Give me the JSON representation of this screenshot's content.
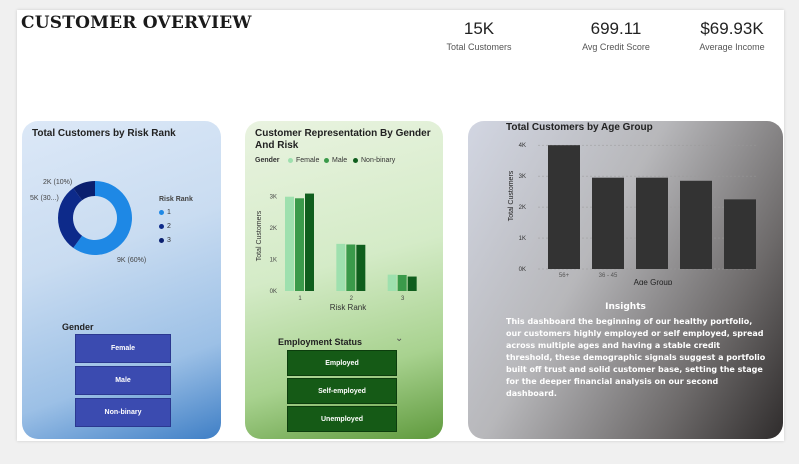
{
  "header": {
    "title": "CUSTOMER OVERVIEW",
    "kpis": [
      {
        "value": "15K",
        "label": "Total Customers"
      },
      {
        "value": "699.11",
        "label": "Avg Credit Score"
      },
      {
        "value": "$69.93K",
        "label": "Average Income"
      }
    ]
  },
  "risk_card": {
    "title": "Total Customers by Risk Rank",
    "legend_title": "Risk Rank",
    "legend": [
      "1",
      "2",
      "3"
    ],
    "slice_labels": [
      "9K (60%)",
      "5K (30...)",
      "2K (10%)"
    ],
    "gender_slicer": {
      "title": "Gender",
      "options": [
        "Female",
        "Male",
        "Non-binary"
      ]
    }
  },
  "gender_card": {
    "title_line1": "Customer Representation By Gender",
    "title_line2": "And Risk",
    "legend_title": "Gender",
    "legend": [
      "Female",
      "Male",
      "Non-binary"
    ],
    "y_axis_label": "Total Customers",
    "x_axis_label": "Risk Rank",
    "y_ticks": [
      "3K",
      "2K",
      "1K",
      "0K"
    ],
    "x_ticks": [
      "1",
      "2",
      "3"
    ],
    "employment_slicer": {
      "title": "Employment Status",
      "options": [
        "Employed",
        "Self-employed",
        "Unemployed"
      ]
    }
  },
  "age_card": {
    "title": "Total Customers by Age Group",
    "y_axis_label": "Total Customers",
    "x_axis_label": "Age Group",
    "y_ticks": [
      "4K",
      "3K",
      "2K",
      "1K",
      "0K"
    ],
    "x_ticks": [
      "56+",
      "36 - 45",
      "",
      "",
      ""
    ],
    "insights_title": "Insights",
    "insights_text": "This dashboard the beginning of our healthy portfolio, our customers highly employed or self employed, spread across multiple ages and having a stable credit threshold, these demographic signals suggest a portfolio built off trust and solid customer base, setting the stage for the deeper financial analysis on our second dashboard."
  },
  "colors": {
    "donut": [
      "#1e88e5",
      "#0d2a8a",
      "#0a1f6e"
    ],
    "gender": [
      "#9ee0ae",
      "#3a9a4a",
      "#0f5e1d"
    ],
    "age_bar": "#333333",
    "gender_button": "#3b4bb0",
    "employment_button": "#155a16"
  },
  "chart_data": [
    {
      "type": "pie",
      "title": "Total Customers by Risk Rank",
      "categories": [
        "1",
        "2",
        "3"
      ],
      "values": [
        9000,
        4500,
        1500
      ],
      "labels": [
        "9K (60%)",
        "5K (30...)",
        "2K (10%)"
      ]
    },
    {
      "type": "bar",
      "title": "Customer Representation By Gender And Risk",
      "xlabel": "Risk Rank",
      "ylabel": "Total Customers",
      "categories": [
        "1",
        "2",
        "3"
      ],
      "ylim": [
        0,
        3500
      ],
      "series": [
        {
          "name": "Female",
          "values": [
            3000,
            1500,
            520
          ]
        },
        {
          "name": "Male",
          "values": [
            2950,
            1480,
            510
          ]
        },
        {
          "name": "Non-binary",
          "values": [
            3100,
            1470,
            460
          ]
        }
      ]
    },
    {
      "type": "bar",
      "title": "Total Customers by Age Group",
      "xlabel": "Age Group",
      "ylabel": "Total Customers",
      "categories": [
        "56+",
        "36 - 45",
        "",
        "",
        ""
      ],
      "values": [
        4000,
        2950,
        2950,
        2850,
        2250
      ],
      "ylim": [
        0,
        4200
      ]
    }
  ]
}
